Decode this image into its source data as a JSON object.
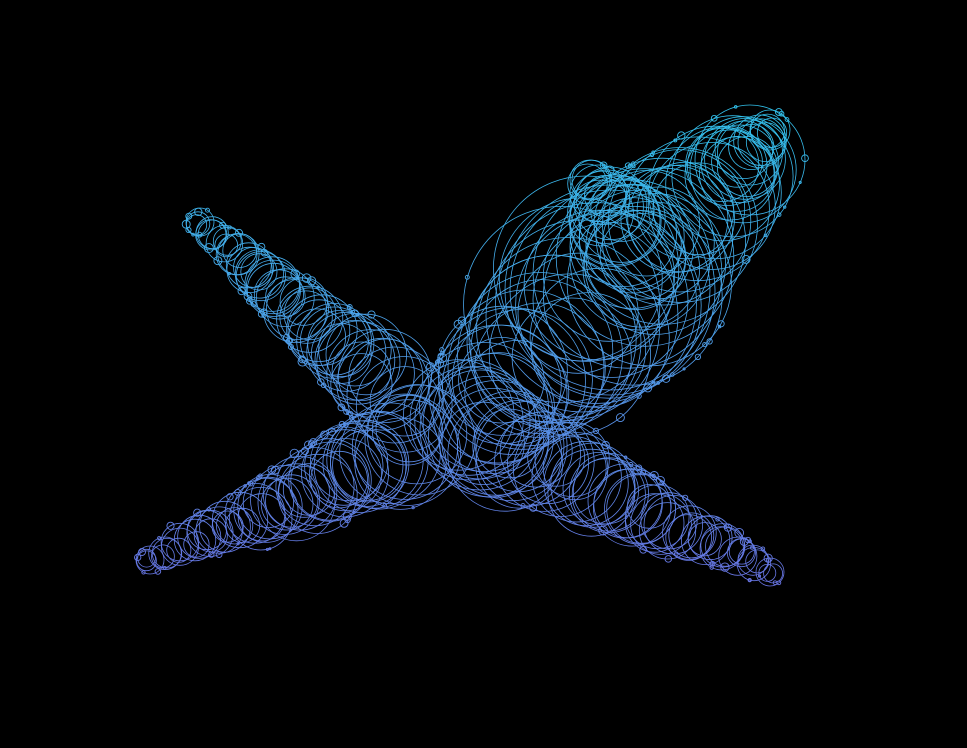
{
  "artwork": {
    "background_color": "#000000",
    "gradient_colors": {
      "top": "#2fc4ec",
      "middle": "#4f9fea",
      "bottom": "#6a72e4"
    },
    "shape": "cross-shaped blob outlined by overlapping circles",
    "style": "thin stroked circles, no fill"
  }
}
